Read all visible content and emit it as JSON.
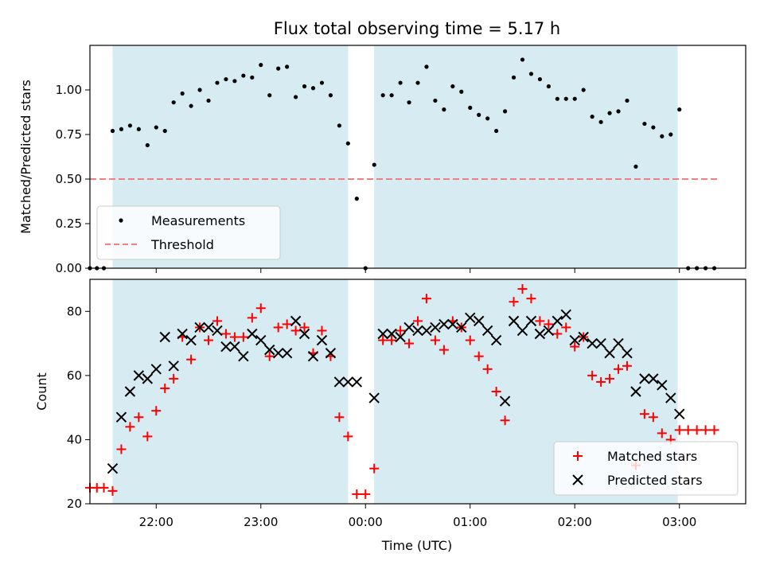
{
  "chart_data": {
    "title": "Flux total observing time = 5.17 h",
    "xlabel": "Time (UTC)",
    "x_ticks": [
      {
        "time": "22:00",
        "label": "22:00"
      },
      {
        "time": "23:00",
        "label": "23:00"
      },
      {
        "time": "00:00",
        "label": "00:00"
      },
      {
        "time": "01:00",
        "label": "01:00"
      },
      {
        "time": "02:00",
        "label": "02:00"
      },
      {
        "time": "03:00",
        "label": "03:00"
      }
    ],
    "x_range": [
      "21:22",
      "03:38"
    ],
    "shaded_intervals": [
      {
        "start": "21:35",
        "end": "23:50",
        "color": "#add8e6"
      },
      {
        "start": "00:05",
        "end": "02:59",
        "color": "#add8e6"
      }
    ],
    "top_panel": {
      "type": "scatter",
      "ylabel": "Matched/Predicted stars",
      "ylim": [
        0.0,
        1.25
      ],
      "y_ticks": [
        "0.00",
        "0.25",
        "0.50",
        "0.75",
        "1.00"
      ],
      "threshold": {
        "value": 0.5,
        "from": "21:22",
        "to": "03:22",
        "color": "#f08080"
      },
      "legend": {
        "position": "lower-left",
        "items": [
          {
            "label": "Measurements",
            "marker": "dot"
          },
          {
            "label": "Threshold",
            "marker": "dashed-line"
          }
        ]
      },
      "series": [
        {
          "name": "Measurements",
          "color": "#000000",
          "points": [
            [
              "21:22",
              0.0
            ],
            [
              "21:26",
              0.0
            ],
            [
              "21:30",
              0.0
            ],
            [
              "21:35",
              0.77
            ],
            [
              "21:40",
              0.78
            ],
            [
              "21:45",
              0.8
            ],
            [
              "21:50",
              0.78
            ],
            [
              "21:55",
              0.69
            ],
            [
              "22:00",
              0.79
            ],
            [
              "22:05",
              0.77
            ],
            [
              "22:10",
              0.93
            ],
            [
              "22:15",
              0.98
            ],
            [
              "22:20",
              0.91
            ],
            [
              "22:25",
              1.0
            ],
            [
              "22:30",
              0.94
            ],
            [
              "22:35",
              1.04
            ],
            [
              "22:40",
              1.06
            ],
            [
              "22:45",
              1.05
            ],
            [
              "22:50",
              1.08
            ],
            [
              "22:55",
              1.07
            ],
            [
              "23:00",
              1.14
            ],
            [
              "23:05",
              0.97
            ],
            [
              "23:10",
              1.12
            ],
            [
              "23:15",
              1.13
            ],
            [
              "23:20",
              0.96
            ],
            [
              "23:25",
              1.02
            ],
            [
              "23:30",
              1.01
            ],
            [
              "23:35",
              1.04
            ],
            [
              "23:40",
              0.97
            ],
            [
              "23:45",
              0.8
            ],
            [
              "23:50",
              0.7
            ],
            [
              "23:55",
              0.39
            ],
            [
              "00:00",
              0.0
            ],
            [
              "00:05",
              0.58
            ],
            [
              "00:10",
              0.97
            ],
            [
              "00:15",
              0.97
            ],
            [
              "00:20",
              1.04
            ],
            [
              "00:25",
              0.93
            ],
            [
              "00:30",
              1.04
            ],
            [
              "00:35",
              1.13
            ],
            [
              "00:40",
              0.94
            ],
            [
              "00:45",
              0.89
            ],
            [
              "00:50",
              1.02
            ],
            [
              "00:55",
              0.99
            ],
            [
              "01:00",
              0.9
            ],
            [
              "01:05",
              0.86
            ],
            [
              "01:10",
              0.84
            ],
            [
              "01:15",
              0.77
            ],
            [
              "01:20",
              0.88
            ],
            [
              "01:25",
              1.07
            ],
            [
              "01:30",
              1.17
            ],
            [
              "01:35",
              1.09
            ],
            [
              "01:40",
              1.06
            ],
            [
              "01:45",
              1.02
            ],
            [
              "01:50",
              0.95
            ],
            [
              "01:55",
              0.95
            ],
            [
              "02:00",
              0.95
            ],
            [
              "02:05",
              1.0
            ],
            [
              "02:10",
              0.85
            ],
            [
              "02:15",
              0.82
            ],
            [
              "02:20",
              0.87
            ],
            [
              "02:25",
              0.88
            ],
            [
              "02:30",
              0.94
            ],
            [
              "02:35",
              0.57
            ],
            [
              "02:40",
              0.81
            ],
            [
              "02:45",
              0.79
            ],
            [
              "02:50",
              0.74
            ],
            [
              "02:55",
              0.75
            ],
            [
              "03:00",
              0.89
            ],
            [
              "03:05",
              0.0
            ],
            [
              "03:10",
              0.0
            ],
            [
              "03:15",
              0.0
            ],
            [
              "03:20",
              0.0
            ]
          ]
        }
      ]
    },
    "bottom_panel": {
      "type": "scatter",
      "ylabel": "Count",
      "ylim": [
        20,
        90
      ],
      "y_ticks": [
        "20",
        "40",
        "60",
        "80"
      ],
      "legend": {
        "position": "lower-right",
        "items": [
          {
            "label": "Matched stars",
            "marker": "plus"
          },
          {
            "label": "Predicted stars",
            "marker": "x"
          }
        ]
      },
      "series": [
        {
          "name": "Matched stars",
          "marker": "plus",
          "color": "#ff0000",
          "points": [
            [
              "21:22",
              25
            ],
            [
              "21:26",
              25
            ],
            [
              "21:30",
              25
            ],
            [
              "21:35",
              24
            ],
            [
              "21:40",
              37
            ],
            [
              "21:45",
              44
            ],
            [
              "21:50",
              47
            ],
            [
              "21:55",
              41
            ],
            [
              "22:00",
              49
            ],
            [
              "22:05",
              56
            ],
            [
              "22:10",
              59
            ],
            [
              "22:15",
              72
            ],
            [
              "22:20",
              65
            ],
            [
              "22:25",
              75
            ],
            [
              "22:30",
              71
            ],
            [
              "22:35",
              77
            ],
            [
              "22:40",
              73
            ],
            [
              "22:45",
              72
            ],
            [
              "22:50",
              72
            ],
            [
              "22:55",
              78
            ],
            [
              "23:00",
              81
            ],
            [
              "23:05",
              66
            ],
            [
              "23:10",
              75
            ],
            [
              "23:15",
              76
            ],
            [
              "23:20",
              74
            ],
            [
              "23:25",
              75
            ],
            [
              "23:30",
              67
            ],
            [
              "23:35",
              74
            ],
            [
              "23:40",
              66
            ],
            [
              "23:45",
              47
            ],
            [
              "23:50",
              41
            ],
            [
              "23:55",
              23
            ],
            [
              "00:00",
              23
            ],
            [
              "00:05",
              31
            ],
            [
              "00:10",
              71
            ],
            [
              "00:15",
              71
            ],
            [
              "00:20",
              74
            ],
            [
              "00:25",
              70
            ],
            [
              "00:30",
              77
            ],
            [
              "00:35",
              84
            ],
            [
              "00:40",
              71
            ],
            [
              "00:45",
              68
            ],
            [
              "00:50",
              77
            ],
            [
              "00:55",
              75
            ],
            [
              "01:00",
              71
            ],
            [
              "01:05",
              66
            ],
            [
              "01:10",
              62
            ],
            [
              "01:15",
              55
            ],
            [
              "01:20",
              46
            ],
            [
              "01:25",
              83
            ],
            [
              "01:30",
              87
            ],
            [
              "01:35",
              84
            ],
            [
              "01:40",
              77
            ],
            [
              "01:45",
              76
            ],
            [
              "01:50",
              73
            ],
            [
              "01:55",
              75
            ],
            [
              "02:00",
              69
            ],
            [
              "02:05",
              72
            ],
            [
              "02:10",
              60
            ],
            [
              "02:15",
              58
            ],
            [
              "02:20",
              59
            ],
            [
              "02:25",
              62
            ],
            [
              "02:30",
              63
            ],
            [
              "02:35",
              32
            ],
            [
              "02:40",
              48
            ],
            [
              "02:45",
              47
            ],
            [
              "02:50",
              42
            ],
            [
              "02:55",
              40
            ],
            [
              "03:00",
              43
            ],
            [
              "03:05",
              43
            ],
            [
              "03:10",
              43
            ],
            [
              "03:15",
              43
            ],
            [
              "03:20",
              43
            ]
          ]
        },
        {
          "name": "Predicted stars",
          "marker": "x",
          "color": "#000000",
          "points": [
            [
              "21:35",
              31
            ],
            [
              "21:40",
              47
            ],
            [
              "21:45",
              55
            ],
            [
              "21:50",
              60
            ],
            [
              "21:55",
              59
            ],
            [
              "22:00",
              62
            ],
            [
              "22:05",
              72
            ],
            [
              "22:10",
              63
            ],
            [
              "22:15",
              73
            ],
            [
              "22:20",
              71
            ],
            [
              "22:25",
              75
            ],
            [
              "22:30",
              75
            ],
            [
              "22:35",
              74
            ],
            [
              "22:40",
              69
            ],
            [
              "22:45",
              69
            ],
            [
              "22:50",
              66
            ],
            [
              "22:55",
              73
            ],
            [
              "23:00",
              71
            ],
            [
              "23:05",
              68
            ],
            [
              "23:10",
              67
            ],
            [
              "23:15",
              67
            ],
            [
              "23:20",
              77
            ],
            [
              "23:25",
              73
            ],
            [
              "23:30",
              66
            ],
            [
              "23:35",
              71
            ],
            [
              "23:40",
              67
            ],
            [
              "23:45",
              58
            ],
            [
              "23:50",
              58
            ],
            [
              "23:55",
              58
            ],
            [
              "00:05",
              53
            ],
            [
              "00:10",
              73
            ],
            [
              "00:15",
              73
            ],
            [
              "00:20",
              72
            ],
            [
              "00:25",
              75
            ],
            [
              "00:30",
              74
            ],
            [
              "00:35",
              74
            ],
            [
              "00:40",
              75
            ],
            [
              "00:45",
              76
            ],
            [
              "00:50",
              76
            ],
            [
              "00:55",
              75
            ],
            [
              "01:00",
              78
            ],
            [
              "01:05",
              77
            ],
            [
              "01:10",
              74
            ],
            [
              "01:15",
              71
            ],
            [
              "01:20",
              52
            ],
            [
              "01:25",
              77
            ],
            [
              "01:30",
              74
            ],
            [
              "01:35",
              77
            ],
            [
              "01:40",
              73
            ],
            [
              "01:45",
              74
            ],
            [
              "01:50",
              77
            ],
            [
              "01:55",
              79
            ],
            [
              "02:00",
              71
            ],
            [
              "02:05",
              72
            ],
            [
              "02:10",
              70
            ],
            [
              "02:15",
              70
            ],
            [
              "02:20",
              67
            ],
            [
              "02:25",
              70
            ],
            [
              "02:30",
              67
            ],
            [
              "02:35",
              55
            ],
            [
              "02:40",
              59
            ],
            [
              "02:45",
              59
            ],
            [
              "02:50",
              57
            ],
            [
              "02:55",
              53
            ],
            [
              "03:00",
              48
            ]
          ]
        }
      ]
    }
  }
}
